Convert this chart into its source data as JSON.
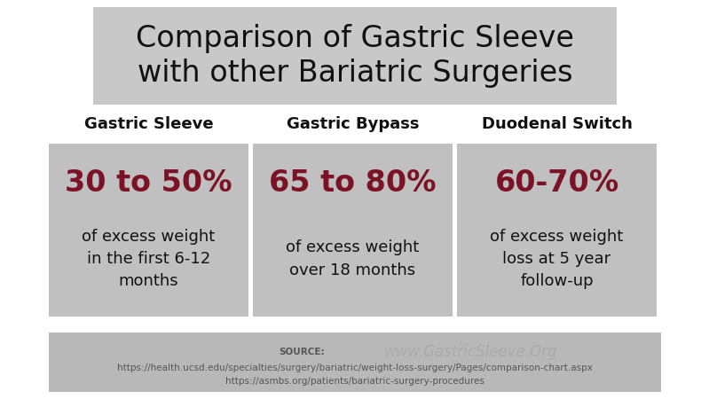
{
  "title": "Comparison of Gastric Sleeve\nwith other Bariatric Surgeries",
  "title_bg": "#c8c8c8",
  "title_fontsize": 24,
  "title_color": "#111111",
  "bg_color": "#ffffff",
  "columns": [
    {
      "header": "Gastric Sleeve",
      "highlight": "30 to 50%",
      "body": "of excess weight\nin the first 6-12\nmonths",
      "box_color": "#c0c0c0",
      "text_align": "center"
    },
    {
      "header": "Gastric Bypass",
      "highlight": "65 to 80%",
      "body": "of excess weight\nover 18 months",
      "box_color": "#c0c0c0",
      "text_align": "center"
    },
    {
      "header": "Duodenal Switch",
      "highlight": "60-70%",
      "body": "of excess weight\nloss at 5 year\nfollow-up",
      "box_color": "#c0c0c0",
      "text_align": "center"
    }
  ],
  "highlight_color": "#7b1225",
  "highlight_fontsize": 24,
  "header_fontsize": 13,
  "body_fontsize": 13,
  "footer_bg": "#b8b8b8",
  "footer_source_label": "SOURCE:",
  "footer_source_text": "https://health.ucsd.edu/specialties/surgery/bariatric/weight-loss-surgery/Pages/comparison-chart.aspx\nhttps://asmbs.org/patients/bariatric-surgery-procedures",
  "footer_website": "www.GastricSleeve.Org",
  "footer_fontsize": 7.5,
  "footer_website_fontsize": 12,
  "footer_color": "#555555",
  "footer_website_color": "#aaaaaa"
}
